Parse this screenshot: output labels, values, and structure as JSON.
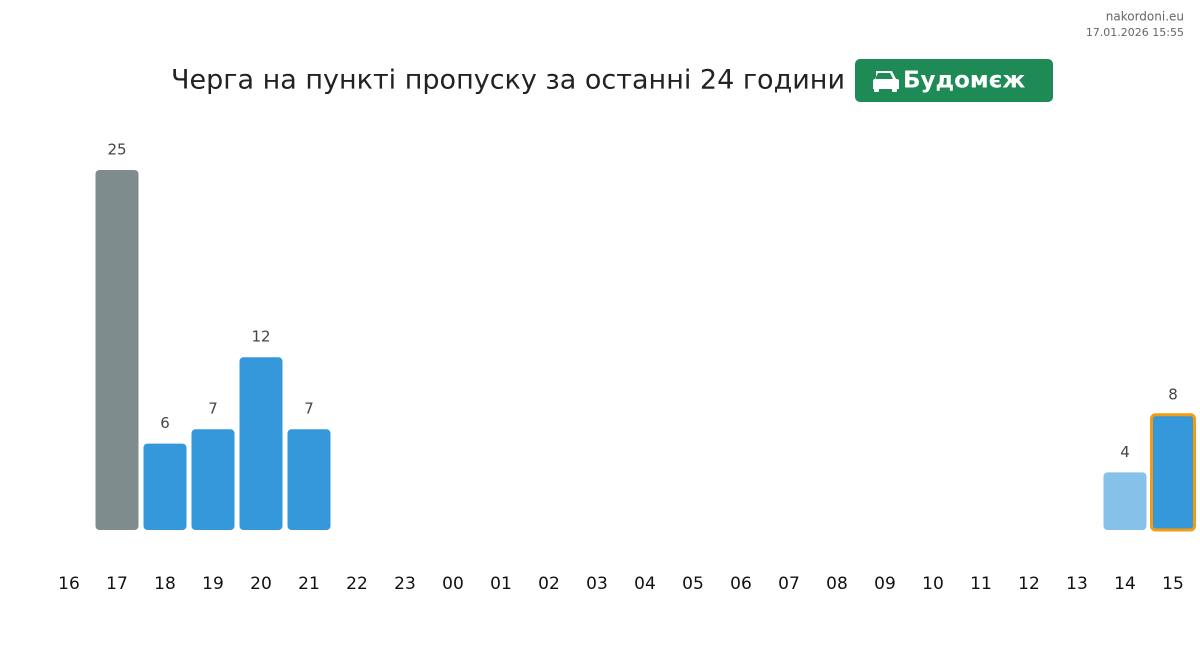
{
  "site": "nakordoni.eu",
  "timestamp": "17.01.2026 15:55",
  "chart_data": {
    "type": "bar",
    "title": "Черга на пункті пропуску за останні 24 години",
    "badge": "Будомєж",
    "categories": [
      "16",
      "17",
      "18",
      "19",
      "20",
      "21",
      "22",
      "23",
      "00",
      "01",
      "02",
      "03",
      "04",
      "05",
      "06",
      "07",
      "08",
      "09",
      "10",
      "11",
      "12",
      "13",
      "14",
      "15"
    ],
    "values": [
      null,
      25,
      6,
      7,
      12,
      7,
      null,
      null,
      null,
      null,
      null,
      null,
      null,
      null,
      null,
      null,
      null,
      null,
      null,
      null,
      null,
      null,
      4,
      8
    ],
    "colors": [
      null,
      "#7f8c8d",
      "#3498db",
      "#3498db",
      "#3498db",
      "#3498db",
      null,
      null,
      null,
      null,
      null,
      null,
      null,
      null,
      null,
      null,
      null,
      null,
      null,
      null,
      null,
      null,
      "#85c1e9",
      "#3498db"
    ],
    "border_colors": [
      null,
      null,
      null,
      null,
      null,
      null,
      null,
      null,
      null,
      null,
      null,
      null,
      null,
      null,
      null,
      null,
      null,
      null,
      null,
      null,
      null,
      null,
      null,
      "#f39c12"
    ]
  }
}
